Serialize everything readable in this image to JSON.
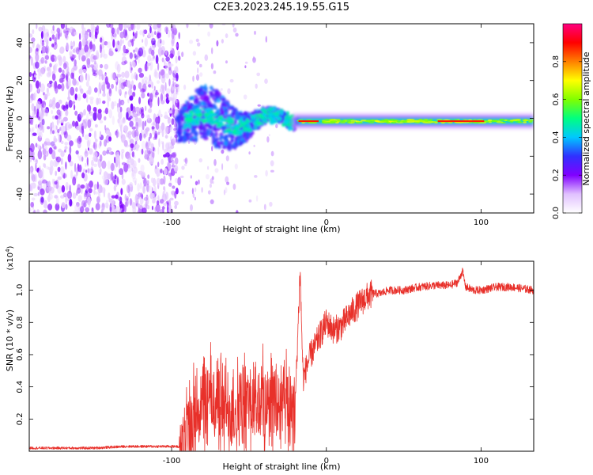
{
  "title": "C2E3.2023.245.19.55.G15",
  "colorbar": {
    "label": "Normalized spectral amplitude",
    "ticks": [
      0.0,
      0.2,
      0.4,
      0.6,
      0.8
    ],
    "tick_labels": [
      "0.0",
      "0.2",
      "0.4",
      "0.6",
      "0.8"
    ],
    "range": [
      0,
      1
    ],
    "colormap": [
      "#ffffff",
      "#e0c0ff",
      "#8000ff",
      "#3030ff",
      "#00c8ff",
      "#00ff80",
      "#80ff00",
      "#ffff00",
      "#ff8000",
      "#ff0000",
      "#ff0080"
    ]
  },
  "chart_data": [
    {
      "type": "heatmap",
      "name": "spectrogram",
      "xlabel": "Height of straight line (km)",
      "ylabel": "Frequency (Hz)",
      "xlim": [
        -192,
        134
      ],
      "ylim": [
        -50,
        50
      ],
      "xticks": [
        -100,
        0,
        100
      ],
      "xtick_labels": [
        "-100",
        "0",
        "100"
      ],
      "yticks": [
        -40,
        -20,
        0,
        20,
        40
      ],
      "ytick_labels": [
        "-40",
        "-20",
        "0",
        "20",
        "40"
      ],
      "regions": [
        {
          "x": [
            -192,
            -95
          ],
          "description_level": 0.2,
          "freq_band": [
            -50,
            50
          ]
        },
        {
          "x": [
            -95,
            -20
          ],
          "description_level": 0.45,
          "freq_band": [
            -10,
            10
          ]
        },
        {
          "x": [
            -20,
            134
          ],
          "description_level": 0.6,
          "freq_band": [
            -3,
            3
          ]
        }
      ],
      "line_center_hz": -1.5
    },
    {
      "type": "line",
      "name": "snr",
      "xlabel": "Height of straight line (km)",
      "ylabel": "SNR (10 * v/v)",
      "yunit_label": "(x10",
      "yunit_exp": "4",
      "yunit_close": ")",
      "xlim": [
        -192,
        134
      ],
      "ylim": [
        0,
        1.18
      ],
      "xticks": [
        -100,
        0,
        100
      ],
      "xtick_labels": [
        "-100",
        "0",
        "100"
      ],
      "yticks": [
        0.2,
        0.4,
        0.6,
        0.8,
        1.0
      ],
      "ytick_labels": [
        "0.2",
        "0.4",
        "0.6",
        "0.8",
        "1.0"
      ],
      "color": "#e8302a",
      "series": [
        {
          "x": [
            -192,
            -170,
            -150,
            -130,
            -110,
            -100,
            -95,
            -90,
            -85,
            -80,
            -75,
            -70,
            -65,
            -60,
            -55,
            -50,
            -45,
            -40,
            -35,
            -30,
            -25,
            -20,
            -17,
            -15,
            -12,
            -10,
            -5,
            0,
            5,
            10,
            15,
            20,
            25,
            30,
            35,
            40,
            50,
            60,
            70,
            80,
            85,
            88,
            90,
            95,
            100,
            110,
            120,
            134
          ],
          "values": [
            0.02,
            0.02,
            0.02,
            0.03,
            0.03,
            0.03,
            0.03,
            0.1,
            0.22,
            0.3,
            0.32,
            0.3,
            0.26,
            0.28,
            0.25,
            0.3,
            0.28,
            0.3,
            0.32,
            0.27,
            0.26,
            0.32,
            1.12,
            0.45,
            0.55,
            0.6,
            0.7,
            0.8,
            0.75,
            0.78,
            0.85,
            0.9,
            0.95,
            0.98,
            0.98,
            1.0,
            1.0,
            1.02,
            1.03,
            1.03,
            1.05,
            1.12,
            1.02,
            1.0,
            1.0,
            1.02,
            1.02,
            1.0
          ]
        }
      ]
    }
  ]
}
